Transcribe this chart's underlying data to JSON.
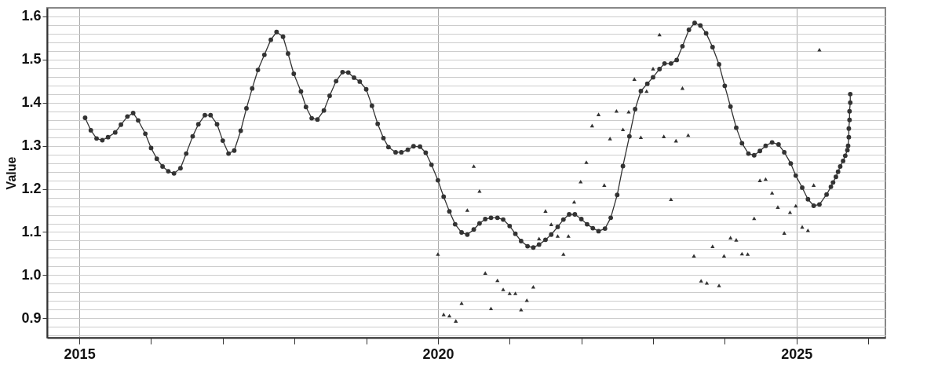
{
  "chart_data": {
    "type": "line",
    "ylabel": "Value",
    "xlim": [
      2014.55,
      2026.24
    ],
    "ylim": [
      0.855,
      1.62
    ],
    "xticks": [
      2015,
      {
        "value": 2016,
        "label": null
      },
      {
        "value": 2017,
        "label": null
      },
      {
        "value": 2018,
        "label": null
      },
      {
        "value": 2019,
        "label": null
      },
      2020,
      {
        "value": 2021,
        "label": null
      },
      {
        "value": 2022,
        "label": null
      },
      {
        "value": 2023,
        "label": null
      },
      {
        "value": 2024,
        "label": null
      },
      2025,
      {
        "value": 2026,
        "label": null
      }
    ],
    "yticks": [
      {
        "value": 0.86,
        "label": null
      },
      {
        "value": 0.88,
        "label": null
      },
      0.9,
      {
        "value": 0.92,
        "label": null
      },
      {
        "value": 0.94,
        "label": null
      },
      {
        "value": 0.96,
        "label": null
      },
      {
        "value": 0.98,
        "label": null
      },
      {
        "value": 1.0,
        "label": "1.0"
      },
      {
        "value": 1.02,
        "label": null
      },
      {
        "value": 1.04,
        "label": null
      },
      {
        "value": 1.06,
        "label": null
      },
      {
        "value": 1.08,
        "label": null
      },
      1.1,
      {
        "value": 1.12,
        "label": null
      },
      {
        "value": 1.14,
        "label": null
      },
      {
        "value": 1.16,
        "label": null
      },
      {
        "value": 1.18,
        "label": null
      },
      1.2,
      {
        "value": 1.22,
        "label": null
      },
      {
        "value": 1.24,
        "label": null
      },
      {
        "value": 1.26,
        "label": null
      },
      {
        "value": 1.28,
        "label": null
      },
      1.3,
      {
        "value": 1.32,
        "label": null
      },
      {
        "value": 1.34,
        "label": null
      },
      {
        "value": 1.36,
        "label": null
      },
      {
        "value": 1.38,
        "label": null
      },
      1.4,
      {
        "value": 1.42,
        "label": null
      },
      {
        "value": 1.44,
        "label": null
      },
      {
        "value": 1.46,
        "label": null
      },
      {
        "value": 1.48,
        "label": null
      },
      1.5,
      {
        "value": 1.52,
        "label": null
      },
      {
        "value": 1.54,
        "label": null
      },
      {
        "value": 1.56,
        "label": null
      },
      {
        "value": 1.58,
        "label": null
      },
      1.6
    ],
    "grid": true,
    "series": [
      {
        "marker": "circle",
        "line_style": "solid",
        "color": "#333333",
        "x": [
          2015.08,
          2015.16,
          2015.24,
          2015.32,
          2015.4,
          2015.5,
          2015.58,
          2015.67,
          2015.75,
          2015.82,
          2015.92,
          2016.0,
          2016.08,
          2016.16,
          2016.24,
          2016.32,
          2016.41,
          2016.49,
          2016.58,
          2016.66,
          2016.75,
          2016.83,
          2016.92,
          2017.0,
          2017.08,
          2017.16,
          2017.25,
          2017.33,
          2017.41,
          2017.49,
          2017.58,
          2017.67,
          2017.75,
          2017.84,
          2017.91,
          2017.99,
          2018.09,
          2018.16,
          2018.24,
          2018.32,
          2018.41,
          2018.49,
          2018.58,
          2018.67,
          2018.75,
          2018.83,
          2018.91,
          2019.0,
          2019.08,
          2019.16,
          2019.24,
          2019.31,
          2019.41,
          2019.49,
          2019.58,
          2019.66,
          2019.75,
          2019.83,
          2019.91,
          2020.0,
          2020.08,
          2020.16,
          2020.24,
          2020.33,
          2020.41,
          2020.5,
          2020.58,
          2020.66,
          2020.74,
          2020.83,
          2020.91,
          2021.0,
          2021.08,
          2021.16,
          2021.25,
          2021.33,
          2021.41,
          2021.5,
          2021.58,
          2021.67,
          2021.75,
          2021.83,
          2021.91,
          2022.0,
          2022.08,
          2022.16,
          2022.24,
          2022.33,
          2022.41,
          2022.5,
          2022.58,
          2022.67,
          2022.75,
          2022.83,
          2022.92,
          2023.0,
          2023.09,
          2023.16,
          2023.25,
          2023.33,
          2023.41,
          2023.5,
          2023.58,
          2023.66,
          2023.74,
          2023.83,
          2023.92,
          2024.0,
          2024.08,
          2024.16,
          2024.24,
          2024.33,
          2024.41,
          2024.49,
          2024.57,
          2024.66,
          2024.75,
          2024.83,
          2024.92,
          2024.99,
          2025.08,
          2025.16,
          2025.24,
          2025.32,
          2025.42,
          2025.48,
          2025.51,
          2025.55,
          2025.58,
          2025.61,
          2025.65,
          2025.68,
          2025.71,
          2025.72,
          2025.73,
          2025.73,
          2025.74,
          2025.74,
          2025.75,
          2025.75
        ],
        "values": [
          1.365,
          1.336,
          1.317,
          1.313,
          1.32,
          1.331,
          1.349,
          1.368,
          1.376,
          1.359,
          1.328,
          1.295,
          1.27,
          1.252,
          1.241,
          1.236,
          1.248,
          1.282,
          1.322,
          1.35,
          1.371,
          1.371,
          1.35,
          1.312,
          1.282,
          1.289,
          1.335,
          1.387,
          1.433,
          1.476,
          1.511,
          1.546,
          1.564,
          1.553,
          1.514,
          1.467,
          1.426,
          1.39,
          1.364,
          1.361,
          1.382,
          1.416,
          1.45,
          1.471,
          1.47,
          1.458,
          1.449,
          1.431,
          1.393,
          1.351,
          1.318,
          1.297,
          1.285,
          1.285,
          1.291,
          1.299,
          1.298,
          1.284,
          1.256,
          1.22,
          1.182,
          1.148,
          1.118,
          1.099,
          1.094,
          1.106,
          1.12,
          1.13,
          1.133,
          1.133,
          1.129,
          1.114,
          1.096,
          1.079,
          1.067,
          1.064,
          1.071,
          1.082,
          1.094,
          1.112,
          1.129,
          1.141,
          1.141,
          1.13,
          1.118,
          1.109,
          1.102,
          1.108,
          1.133,
          1.186,
          1.253,
          1.322,
          1.385,
          1.427,
          1.444,
          1.459,
          1.478,
          1.491,
          1.491,
          1.499,
          1.531,
          1.569,
          1.585,
          1.579,
          1.561,
          1.529,
          1.489,
          1.439,
          1.391,
          1.342,
          1.306,
          1.282,
          1.278,
          1.288,
          1.3,
          1.308,
          1.303,
          1.285,
          1.259,
          1.231,
          1.203,
          1.176,
          1.161,
          1.164,
          1.187,
          1.205,
          1.215,
          1.228,
          1.24,
          1.252,
          1.265,
          1.277,
          1.29,
          1.3,
          1.32,
          1.34,
          1.36,
          1.38,
          1.4,
          1.42
        ]
      },
      {
        "type": "scatter",
        "marker": "triangle",
        "color": "#333333",
        "x": [
          2020.0,
          2020.08,
          2020.16,
          2020.25,
          2020.33,
          2020.41,
          2020.5,
          2020.58,
          2020.66,
          2020.74,
          2020.83,
          2020.91,
          2021.0,
          2021.08,
          2021.16,
          2021.24,
          2021.33,
          2021.41,
          2021.5,
          2021.58,
          2021.67,
          2021.75,
          2021.82,
          2021.9,
          2021.99,
          2022.07,
          2022.15,
          2022.24,
          2022.32,
          2022.4,
          2022.49,
          2022.58,
          2022.66,
          2022.74,
          2022.83,
          2022.91,
          2023.0,
          2023.09,
          2023.15,
          2023.25,
          2023.32,
          2023.41,
          2023.49,
          2023.57,
          2023.67,
          2023.75,
          2023.83,
          2023.92,
          2023.99,
          2024.08,
          2024.16,
          2024.24,
          2024.32,
          2024.41,
          2024.49,
          2024.57,
          2024.66,
          2024.74,
          2024.83,
          2024.91,
          2024.99,
          2025.08,
          2025.16,
          2025.24,
          2025.32
        ],
        "values": [
          1.049,
          0.909,
          0.906,
          0.894,
          0.935,
          1.151,
          1.253,
          1.195,
          1.005,
          0.923,
          0.988,
          0.967,
          0.958,
          0.958,
          0.92,
          0.942,
          0.973,
          1.085,
          1.149,
          1.118,
          1.091,
          1.049,
          1.091,
          1.17,
          1.217,
          1.262,
          1.347,
          1.373,
          1.209,
          1.317,
          1.381,
          1.338,
          1.379,
          1.455,
          1.32,
          1.427,
          1.479,
          1.558,
          1.322,
          1.176,
          1.312,
          1.434,
          1.325,
          1.045,
          0.987,
          0.982,
          1.067,
          0.976,
          1.045,
          1.087,
          1.082,
          1.05,
          1.049,
          1.132,
          1.22,
          1.223,
          1.191,
          1.158,
          1.098,
          1.146,
          1.161,
          1.112,
          1.104,
          1.209,
          1.523
        ]
      }
    ]
  }
}
